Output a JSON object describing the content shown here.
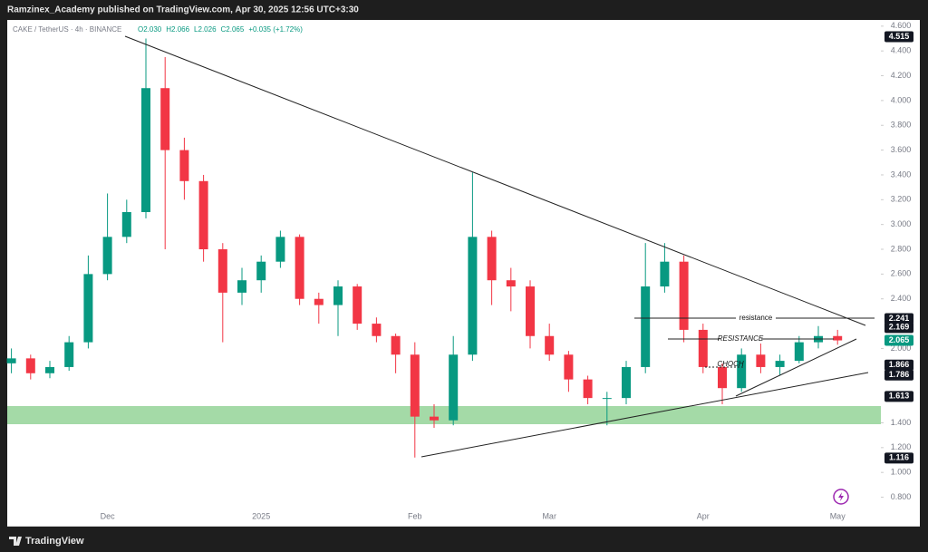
{
  "header": {
    "publisher": "Ramzinex_Academy published on TradingView.com, Apr 30, 2025 12:56 UTC+3:30"
  },
  "footer": {
    "brand": "TradingView"
  },
  "chart_data": {
    "type": "candlestick",
    "symbol": "CAKE / TetherUS · 4h · BINANCE",
    "ohlc_legend": [
      "O2.030",
      "H2.066",
      "L2.026",
      "C2.065",
      "+0.035 (+1.72%)"
    ],
    "categories": [
      null,
      null,
      null,
      null,
      null,
      "Dec",
      null,
      null,
      null,
      null,
      null,
      null,
      null,
      "2025",
      null,
      null,
      null,
      null,
      null,
      null,
      null,
      "Feb",
      null,
      null,
      null,
      null,
      null,
      null,
      "Mar",
      null,
      null,
      null,
      null,
      null,
      null,
      null,
      "Apr",
      null,
      null,
      null,
      null,
      null,
      null,
      "May"
    ],
    "open": [
      1.88,
      1.92,
      1.8,
      1.85,
      2.05,
      2.6,
      2.9,
      3.1,
      4.1,
      3.6,
      3.35,
      2.8,
      2.45,
      2.55,
      2.7,
      2.9,
      2.4,
      2.35,
      2.5,
      2.2,
      2.1,
      1.95,
      1.45,
      1.42,
      1.95,
      2.9,
      2.55,
      2.5,
      2.1,
      1.95,
      1.75,
      1.6,
      1.6,
      1.85,
      2.5,
      2.7,
      2.15,
      1.85,
      1.68,
      1.95,
      1.85,
      1.9,
      2.05,
      2.1
    ],
    "high": [
      2.0,
      1.95,
      1.9,
      2.1,
      2.75,
      3.25,
      3.2,
      4.5,
      4.35,
      3.7,
      3.4,
      2.85,
      2.65,
      2.75,
      2.95,
      2.92,
      2.45,
      2.55,
      2.52,
      2.25,
      2.12,
      2.05,
      1.55,
      2.1,
      3.42,
      2.95,
      2.65,
      2.55,
      2.2,
      1.98,
      1.78,
      1.65,
      1.9,
      2.85,
      2.85,
      2.75,
      2.2,
      1.88,
      2.0,
      2.05,
      1.95,
      2.1,
      2.18,
      2.15
    ],
    "low": [
      1.8,
      1.75,
      1.76,
      1.82,
      2.0,
      2.55,
      2.85,
      3.05,
      2.8,
      3.2,
      2.7,
      2.05,
      2.35,
      2.45,
      2.65,
      2.35,
      2.2,
      2.1,
      2.15,
      2.05,
      1.8,
      1.12,
      1.36,
      1.38,
      1.9,
      2.35,
      2.3,
      2.0,
      1.9,
      1.65,
      1.55,
      1.38,
      1.55,
      1.8,
      2.45,
      2.05,
      1.8,
      1.55,
      1.65,
      1.8,
      1.78,
      1.88,
      2.0,
      2.03
    ],
    "close": [
      1.92,
      1.8,
      1.85,
      2.05,
      2.6,
      2.9,
      3.1,
      4.1,
      3.6,
      3.35,
      2.8,
      2.45,
      2.55,
      2.7,
      2.9,
      2.4,
      2.35,
      2.5,
      2.2,
      2.1,
      1.95,
      1.45,
      1.42,
      1.95,
      2.9,
      2.55,
      2.5,
      2.1,
      1.95,
      1.75,
      1.6,
      1.6,
      1.85,
      2.5,
      2.7,
      2.15,
      1.85,
      1.68,
      1.95,
      1.85,
      1.9,
      2.05,
      2.1,
      2.065
    ],
    "up_color": "#089981",
    "down_color": "#f23645",
    "ylim": [
      0.57,
      4.65
    ],
    "yticks": [
      {
        "value": 0.8,
        "label": "0.800"
      },
      {
        "value": 1.0,
        "label": "1.000"
      },
      {
        "value": 1.2,
        "label": "1.200"
      },
      {
        "value": 1.4,
        "label": "1.400"
      },
      {
        "value": 2.0,
        "label": "2.000"
      },
      {
        "value": 2.4,
        "label": "2.400"
      },
      {
        "value": 2.6,
        "label": "2.600"
      },
      {
        "value": 2.8,
        "label": "2.800"
      },
      {
        "value": 3.0,
        "label": "3.000"
      },
      {
        "value": 3.2,
        "label": "3.200"
      },
      {
        "value": 3.4,
        "label": "3.400"
      },
      {
        "value": 3.6,
        "label": "3.600"
      },
      {
        "value": 3.8,
        "label": "3.800"
      },
      {
        "value": 4.0,
        "label": "4.000"
      },
      {
        "value": 4.2,
        "label": "4.200"
      },
      {
        "value": 4.4,
        "label": "4.400"
      },
      {
        "value": 4.6,
        "label": "4.600"
      }
    ],
    "price_markers": [
      {
        "value": 4.515,
        "color": "#131722"
      },
      {
        "value": 2.241,
        "color": "#131722"
      },
      {
        "value": 2.169,
        "color": "#131722"
      },
      {
        "value": 2.065,
        "color": "#089981"
      },
      {
        "value": 1.866,
        "color": "#131722"
      },
      {
        "value": 1.786,
        "color": "#131722"
      },
      {
        "value": 1.613,
        "color": "#131722"
      },
      {
        "value": 1.116,
        "color": "#131722"
      }
    ],
    "annotations": [
      "resistance",
      "RESISTANCE",
      "CHOCH"
    ]
  }
}
